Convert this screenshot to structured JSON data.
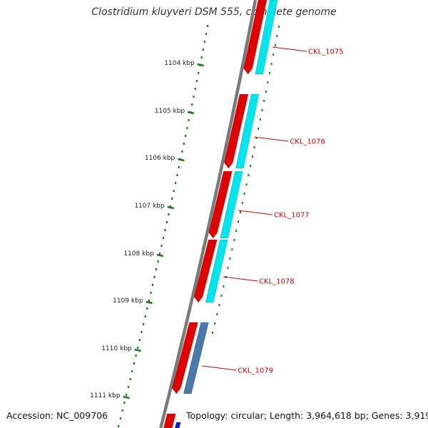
{
  "title": "Clostridium kluyveri DSM 555, complete genome",
  "footer": {
    "accession": "Accession: NC_009706",
    "stats": "Topology: circular; Length: 3,964,618 bp; Genes: 3,919"
  },
  "colors": {
    "backbone": "#7a7a7a",
    "tick": "#1a7a1a",
    "strand_outer": "#e00000",
    "strand_inner": "#00e5ee",
    "strand_inner_alt": "#4a7aaa",
    "strand_blue": "#1020d0",
    "label": "#cc0000"
  },
  "scale": {
    "ticks": [
      "1104 kbp",
      "1105 kbp",
      "1106 kbp",
      "1107 kbp",
      "1108 kbp",
      "1109 kbp",
      "1110 kbp",
      "1111 kbp"
    ]
  },
  "genes": [
    {
      "label": "CKL_1075"
    },
    {
      "label": "CKL_1076"
    },
    {
      "label": "CKL_1077"
    },
    {
      "label": "CKL_1078"
    },
    {
      "label": "CKL_1079"
    }
  ]
}
